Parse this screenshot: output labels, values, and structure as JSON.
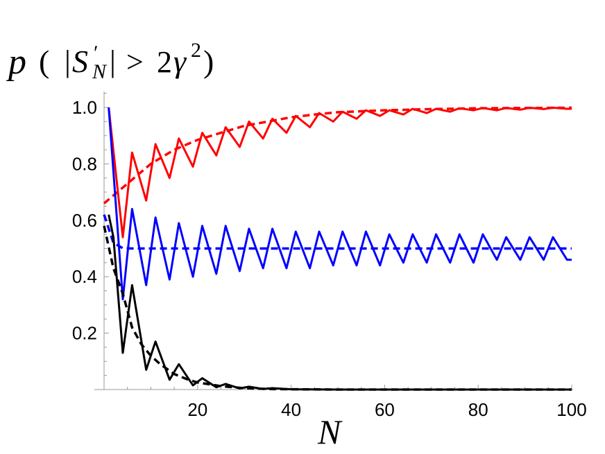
{
  "chart_data": {
    "type": "line",
    "title": "",
    "ylabel": "p ( |S′N| > 2γ² )",
    "ylabel_parts": {
      "p": "p",
      "open": "(",
      "bar_left": "|",
      "S": "S",
      "prime": "′",
      "sub": "N",
      "bar_right": "|",
      "gt": ">",
      "two": "2",
      "gamma": "γ",
      "sq": "2",
      "close": ")"
    },
    "xlabel": "N",
    "xlim": [
      0,
      100
    ],
    "ylim": [
      0,
      1.05
    ],
    "xticks": [
      20,
      40,
      60,
      80,
      100
    ],
    "xtick_labels": [
      "20",
      "40",
      "60",
      "80",
      "100"
    ],
    "yticks": [
      0.2,
      0.4,
      0.6,
      0.8,
      1.0
    ],
    "ytick_labels": [
      "0.2",
      "0.4",
      "0.6",
      "0.8",
      "1.0"
    ],
    "grid": false,
    "legend": "none",
    "series": [
      {
        "style": "solid",
        "color": "#ff0000",
        "x": [
          1,
          4,
          6,
          9,
          11,
          14,
          16,
          19,
          21,
          24,
          26,
          29,
          31,
          34,
          36,
          39,
          41,
          44,
          46,
          49,
          51,
          54,
          56,
          59,
          61,
          64,
          66,
          69,
          71,
          74,
          76,
          79,
          81,
          84,
          86,
          89,
          91,
          94,
          96,
          99,
          100
        ],
        "y": [
          1.0,
          0.54,
          0.84,
          0.67,
          0.87,
          0.75,
          0.89,
          0.79,
          0.91,
          0.83,
          0.93,
          0.86,
          0.95,
          0.89,
          0.96,
          0.91,
          0.97,
          0.93,
          0.98,
          0.95,
          0.985,
          0.96,
          0.99,
          0.97,
          0.99,
          0.975,
          0.995,
          0.98,
          0.995,
          0.985,
          0.997,
          0.99,
          0.998,
          0.99,
          0.998,
          0.992,
          0.999,
          0.994,
          0.999,
          0.995,
          0.995
        ]
      },
      {
        "style": "dashed",
        "color": "#ff0000",
        "x": [
          0,
          5,
          10,
          15,
          20,
          25,
          30,
          35,
          40,
          45,
          50,
          60,
          70,
          80,
          90,
          100
        ],
        "y": [
          0.66,
          0.73,
          0.8,
          0.85,
          0.885,
          0.91,
          0.935,
          0.95,
          0.965,
          0.975,
          0.983,
          0.99,
          0.994,
          0.997,
          0.998,
          0.999
        ]
      },
      {
        "style": "solid",
        "color": "#0000ff",
        "x": [
          1,
          4,
          6,
          9,
          11,
          14,
          16,
          19,
          21,
          24,
          26,
          29,
          31,
          34,
          36,
          39,
          41,
          44,
          46,
          49,
          51,
          54,
          56,
          59,
          61,
          64,
          66,
          69,
          71,
          74,
          76,
          79,
          81,
          84,
          86,
          89,
          91,
          94,
          96,
          99,
          100
        ],
        "y": [
          1.0,
          0.32,
          0.64,
          0.37,
          0.61,
          0.39,
          0.59,
          0.4,
          0.58,
          0.41,
          0.58,
          0.42,
          0.57,
          0.43,
          0.57,
          0.43,
          0.56,
          0.43,
          0.56,
          0.44,
          0.56,
          0.44,
          0.56,
          0.44,
          0.55,
          0.45,
          0.55,
          0.45,
          0.55,
          0.45,
          0.55,
          0.45,
          0.55,
          0.46,
          0.54,
          0.46,
          0.54,
          0.46,
          0.54,
          0.46,
          0.46
        ]
      },
      {
        "style": "dashed",
        "color": "#0000ff",
        "x": [
          0,
          2,
          4,
          6,
          10,
          20,
          40,
          60,
          80,
          100
        ],
        "y": [
          0.62,
          0.52,
          0.501,
          0.5,
          0.5,
          0.5,
          0.5,
          0.5,
          0.5,
          0.5
        ]
      },
      {
        "style": "solid",
        "color": "#000000",
        "x": [
          1,
          2,
          4,
          6,
          9,
          11,
          14,
          16,
          19,
          21,
          24,
          26,
          29,
          31,
          34,
          36,
          40,
          50,
          60,
          70,
          80,
          90,
          100
        ],
        "y": [
          0.62,
          0.54,
          0.13,
          0.37,
          0.07,
          0.17,
          0.035,
          0.09,
          0.015,
          0.04,
          0.008,
          0.02,
          0.004,
          0.01,
          0.002,
          0.005,
          0.001,
          0.0,
          0.0,
          0.0,
          0.0,
          0.0,
          0.0
        ]
      },
      {
        "style": "dashed",
        "color": "#000000",
        "x": [
          0,
          2,
          4,
          6,
          8,
          10,
          12,
          15,
          18,
          20,
          25,
          30,
          35,
          40,
          50,
          60,
          80,
          100
        ],
        "y": [
          0.58,
          0.43,
          0.34,
          0.22,
          0.16,
          0.12,
          0.09,
          0.055,
          0.035,
          0.025,
          0.012,
          0.005,
          0.002,
          0.001,
          0.0,
          0.0,
          0.0,
          0.0
        ]
      }
    ]
  }
}
